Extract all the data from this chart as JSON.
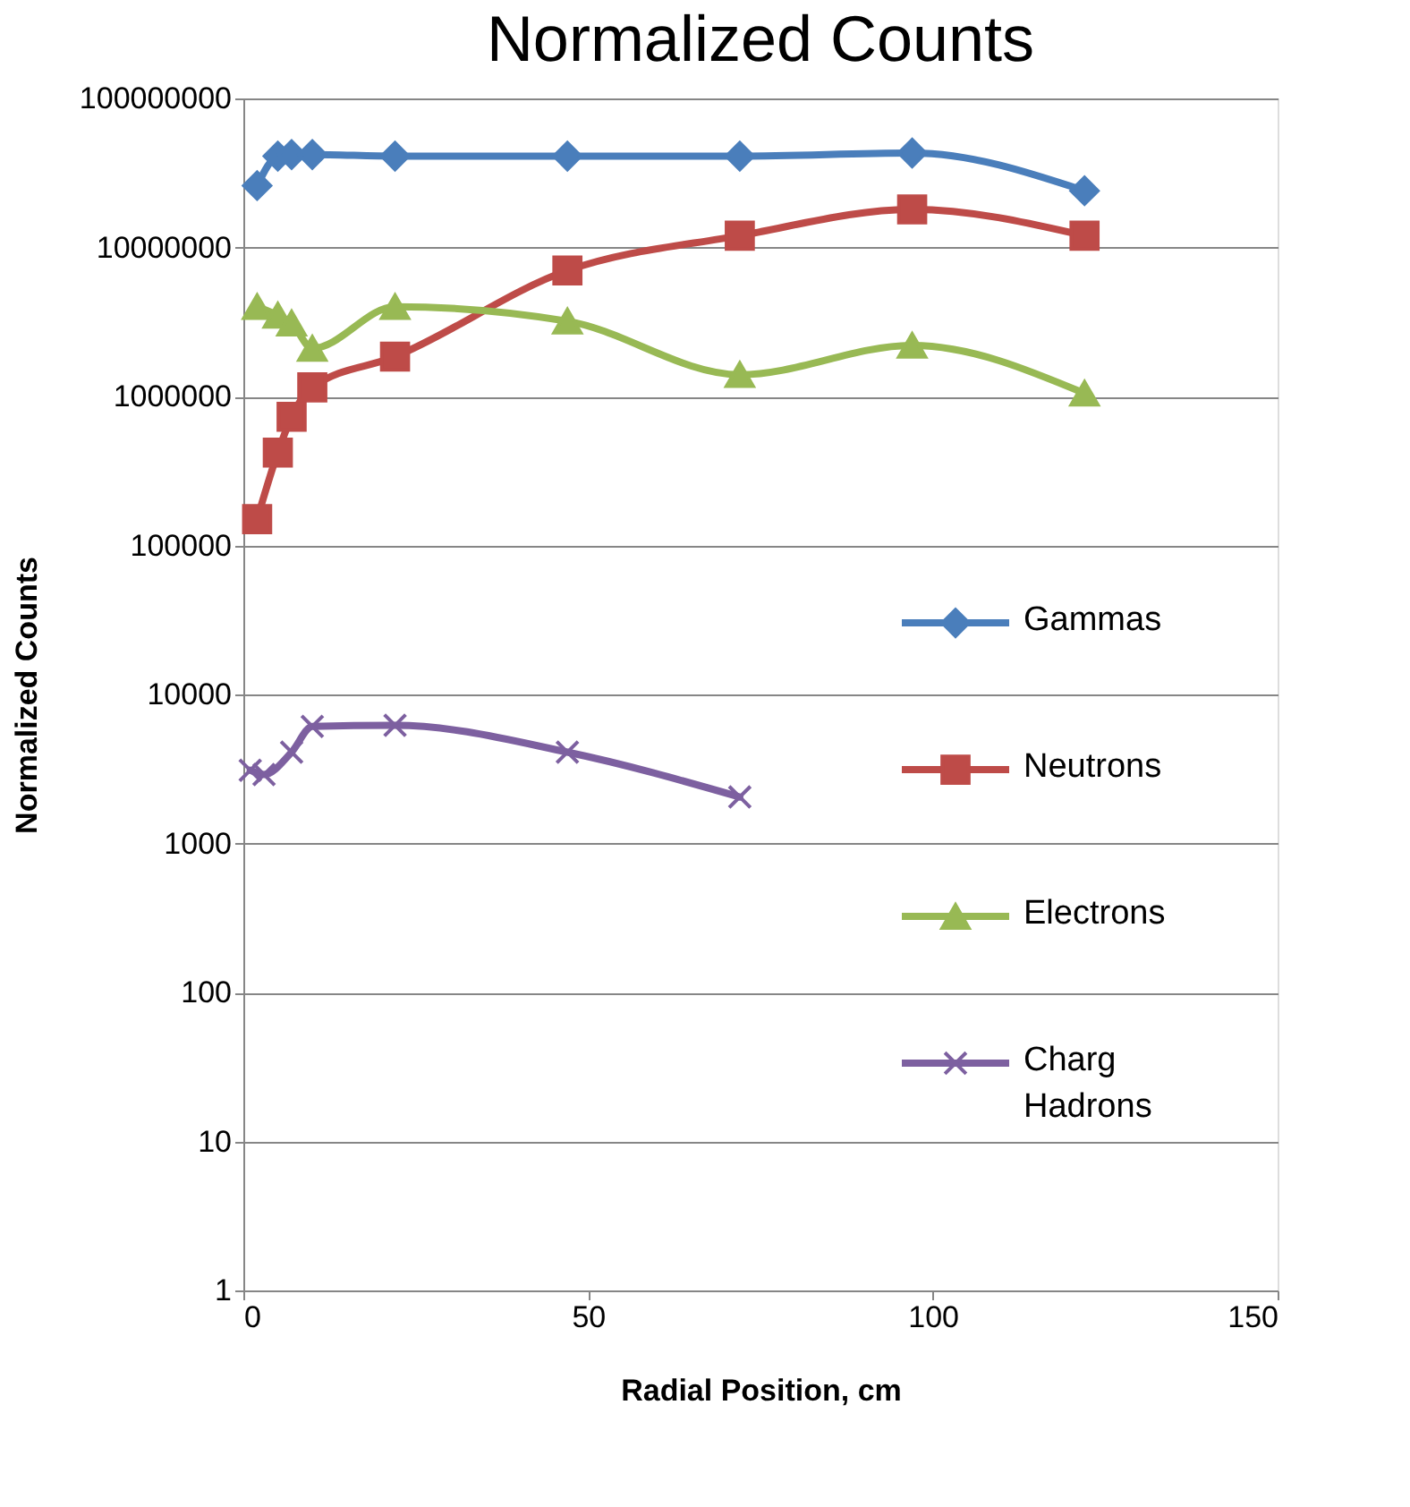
{
  "chart_data": {
    "type": "line",
    "title": "Normalized Counts",
    "xlabel": "Radial Position, cm",
    "ylabel": "Normalized Counts",
    "xlim": [
      0,
      150
    ],
    "xticks": [
      0,
      50,
      100,
      150
    ],
    "ylim": [
      1,
      100000000
    ],
    "yticks": [
      1,
      10,
      100,
      1000,
      10000,
      100000,
      1000000,
      10000000,
      100000000
    ],
    "log": "y",
    "grid": "y",
    "legend": "right",
    "line_style": "solid",
    "series": [
      {
        "name": "Gammas",
        "color": "#4a7ebb",
        "marker": "diamond",
        "x": [
          2,
          5,
          7,
          10,
          22,
          47,
          72,
          97,
          122
        ],
        "values": [
          26000000,
          41000000,
          42000000,
          42000000,
          41000000,
          41000000,
          41000000,
          43000000,
          24000000
        ]
      },
      {
        "name": "Neutrons",
        "color": "#be4b48",
        "marker": "square",
        "x": [
          2,
          5,
          7,
          10,
          22,
          47,
          72,
          97,
          122
        ],
        "values": [
          150000,
          420000,
          730000,
          1150000,
          1850000,
          7000000,
          12000000,
          18000000,
          12000000
        ]
      },
      {
        "name": "Electrons",
        "color": "#98b954",
        "marker": "triangle",
        "x": [
          2,
          5,
          7,
          10,
          22,
          47,
          72,
          97,
          122
        ],
        "values": [
          4000000,
          3500000,
          3100000,
          2100000,
          4000000,
          3200000,
          1400000,
          2200000,
          1050000
        ]
      },
      {
        "name": "Charg Hadrons",
        "color": "#7d60a0",
        "marker": "cross",
        "x": [
          1,
          3,
          7,
          10,
          22,
          47,
          72
        ],
        "values": [
          3100,
          2900,
          4100,
          6100,
          6200,
          4100,
          2050
        ]
      }
    ]
  }
}
